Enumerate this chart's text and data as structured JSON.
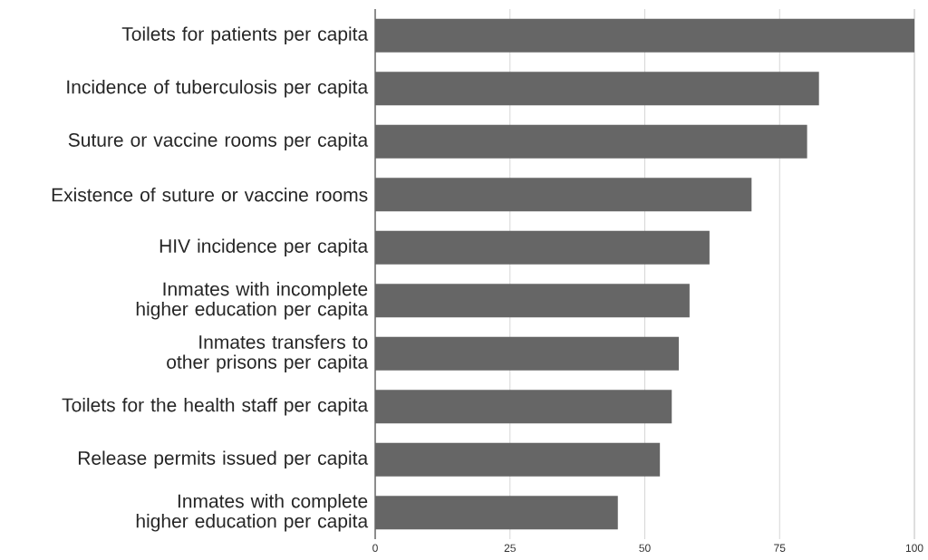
{
  "chart_data": {
    "type": "bar",
    "orientation": "horizontal",
    "categories": [
      "Toilets for patients per capita",
      "Incidence of tuberculosis per capita",
      "Suture or vaccine rooms per capita",
      "Existence of suture or vaccine rooms",
      "HIV incidence per capita",
      "Inmates with incomplete higher education per capita",
      "Inmates transfers to other prisons per capita",
      "Toilets for the health staff per capita",
      "Release permits issued per capita",
      "Inmates with complete higher education per capita"
    ],
    "values": [
      100,
      82.3,
      80.1,
      69.8,
      62.0,
      58.3,
      56.3,
      55.0,
      52.8,
      45.0
    ],
    "color": "#666666",
    "xlim": [
      0,
      100
    ],
    "xticks": [
      0,
      25,
      50,
      75,
      100
    ],
    "grid": "x"
  }
}
